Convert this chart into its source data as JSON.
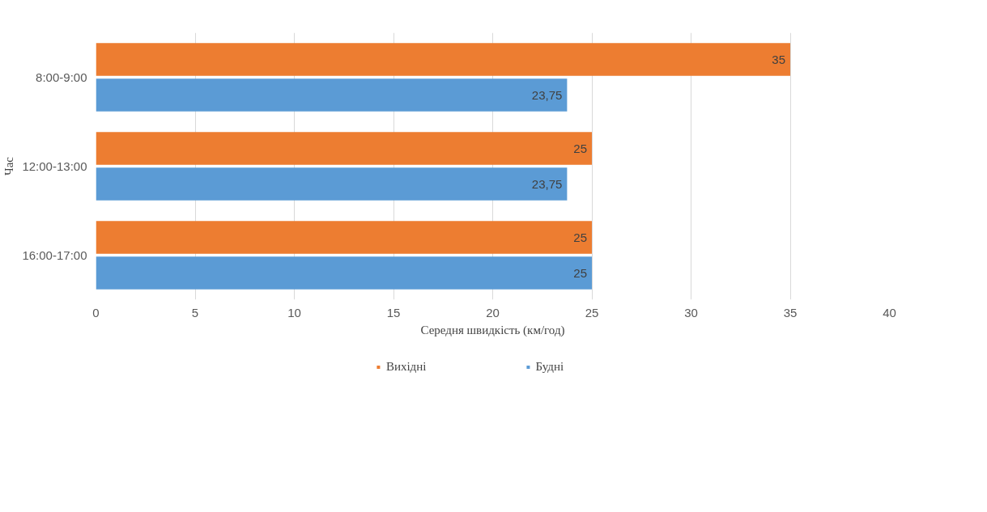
{
  "chart_data": {
    "type": "bar",
    "orientation": "horizontal",
    "xlabel": "Середня швидкість (км/год)",
    "ylabel": "Час",
    "categories": [
      "8:00-9:00",
      "12:00-13:00",
      "16:00-17:00"
    ],
    "series": [
      {
        "name": "Вихідні",
        "color": "#ed7d31",
        "values": [
          35,
          25,
          25
        ],
        "value_labels": [
          "35",
          "25",
          "25"
        ]
      },
      {
        "name": "Будні",
        "color": "#5b9bd5",
        "values": [
          23.75,
          23.75,
          25
        ],
        "value_labels": [
          "23,75",
          "23,75",
          "25"
        ]
      }
    ],
    "xlim": [
      0,
      40
    ],
    "xticks": [
      0,
      5,
      10,
      15,
      20,
      25,
      30,
      35,
      40
    ],
    "grid": "x",
    "legend": "bottom"
  }
}
